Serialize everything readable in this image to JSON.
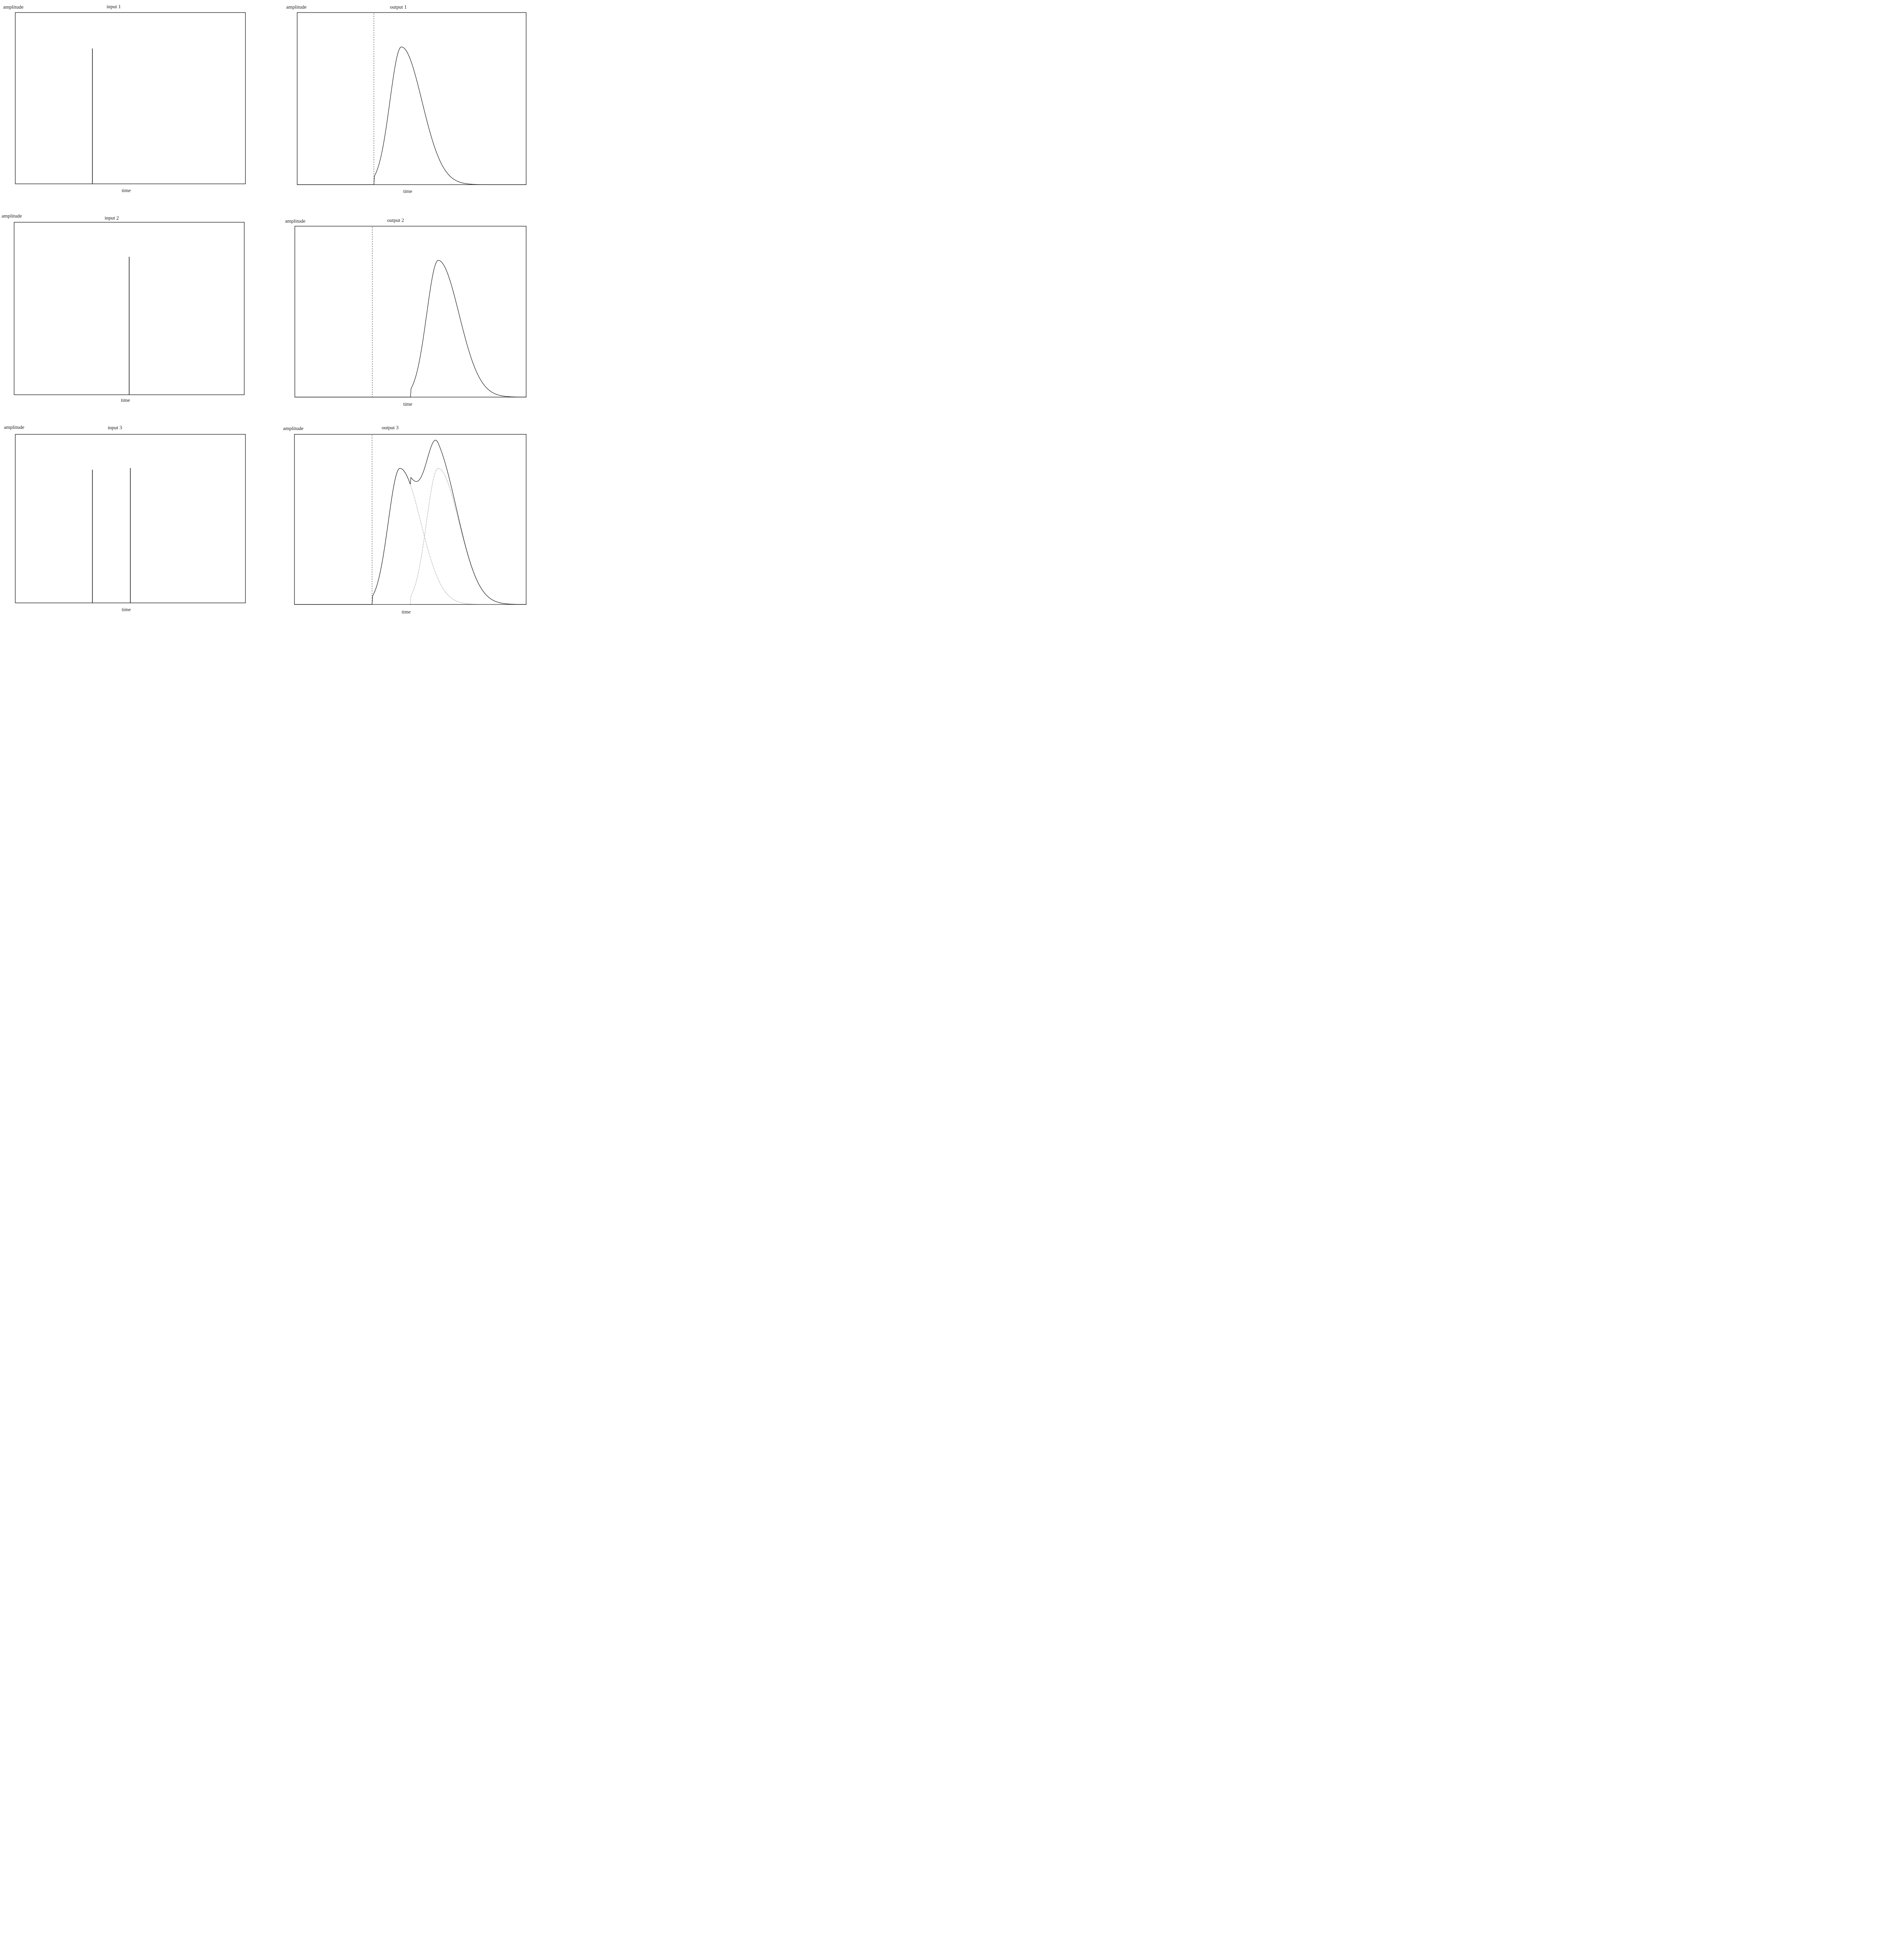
{
  "chart_data": [
    {
      "type": "line",
      "title": "input 1",
      "ylabel": "amplitude",
      "xlabel": "time",
      "x_range": [
        0,
        100
      ],
      "y_range": [
        0,
        1
      ],
      "impulses": [
        {
          "x": 33.5,
          "height": 0.79
        }
      ],
      "reference_line": null,
      "series": []
    },
    {
      "type": "line",
      "title": "output 1",
      "ylabel": "amplitude",
      "xlabel": "time",
      "x_range": [
        0,
        100
      ],
      "y_range": [
        0,
        1
      ],
      "impulses": [],
      "reference_line": {
        "x": 33.5,
        "style": "dashed"
      },
      "series": [
        {
          "kind": "impulse_response",
          "onset": 33.5,
          "peak_delay": 12,
          "peak_height": 0.8,
          "rise_width": 5,
          "decay_width": 9,
          "style": "solid"
        }
      ]
    },
    {
      "type": "line",
      "title": "input 2",
      "ylabel": "amplitude",
      "xlabel": "time",
      "x_range": [
        0,
        100
      ],
      "y_range": [
        0,
        1
      ],
      "impulses": [
        {
          "x": 50,
          "height": 0.8
        }
      ],
      "reference_line": null,
      "series": []
    },
    {
      "type": "line",
      "title": "output 2",
      "ylabel": "amplitude",
      "xlabel": "time",
      "x_range": [
        0,
        100
      ],
      "y_range": [
        0,
        1
      ],
      "impulses": [],
      "reference_line": {
        "x": 33.5,
        "style": "dashed"
      },
      "series": [
        {
          "kind": "impulse_response",
          "onset": 50,
          "peak_delay": 12,
          "peak_height": 0.8,
          "rise_width": 5,
          "decay_width": 9,
          "style": "solid"
        }
      ]
    },
    {
      "type": "line",
      "title": "input 3",
      "ylabel": "amplitude",
      "xlabel": "time",
      "x_range": [
        0,
        100
      ],
      "y_range": [
        0,
        1
      ],
      "impulses": [
        {
          "x": 33.5,
          "height": 0.79
        },
        {
          "x": 50,
          "height": 0.8
        }
      ],
      "reference_line": null,
      "series": []
    },
    {
      "type": "line",
      "title": "output 3",
      "ylabel": "amplitude",
      "xlabel": "time",
      "x_range": [
        0,
        100
      ],
      "y_range": [
        0,
        1
      ],
      "impulses": [],
      "reference_line": {
        "x": 33.5,
        "style": "dashed"
      },
      "series": [
        {
          "kind": "impulse_response",
          "onset": 33.5,
          "peak_delay": 12,
          "peak_height": 0.8,
          "rise_width": 5,
          "decay_width": 9,
          "style": "dotted"
        },
        {
          "kind": "impulse_response",
          "onset": 50,
          "peak_delay": 12,
          "peak_height": 0.8,
          "rise_width": 5,
          "decay_width": 9,
          "style": "dotted"
        },
        {
          "kind": "sum",
          "style": "solid"
        }
      ]
    }
  ]
}
